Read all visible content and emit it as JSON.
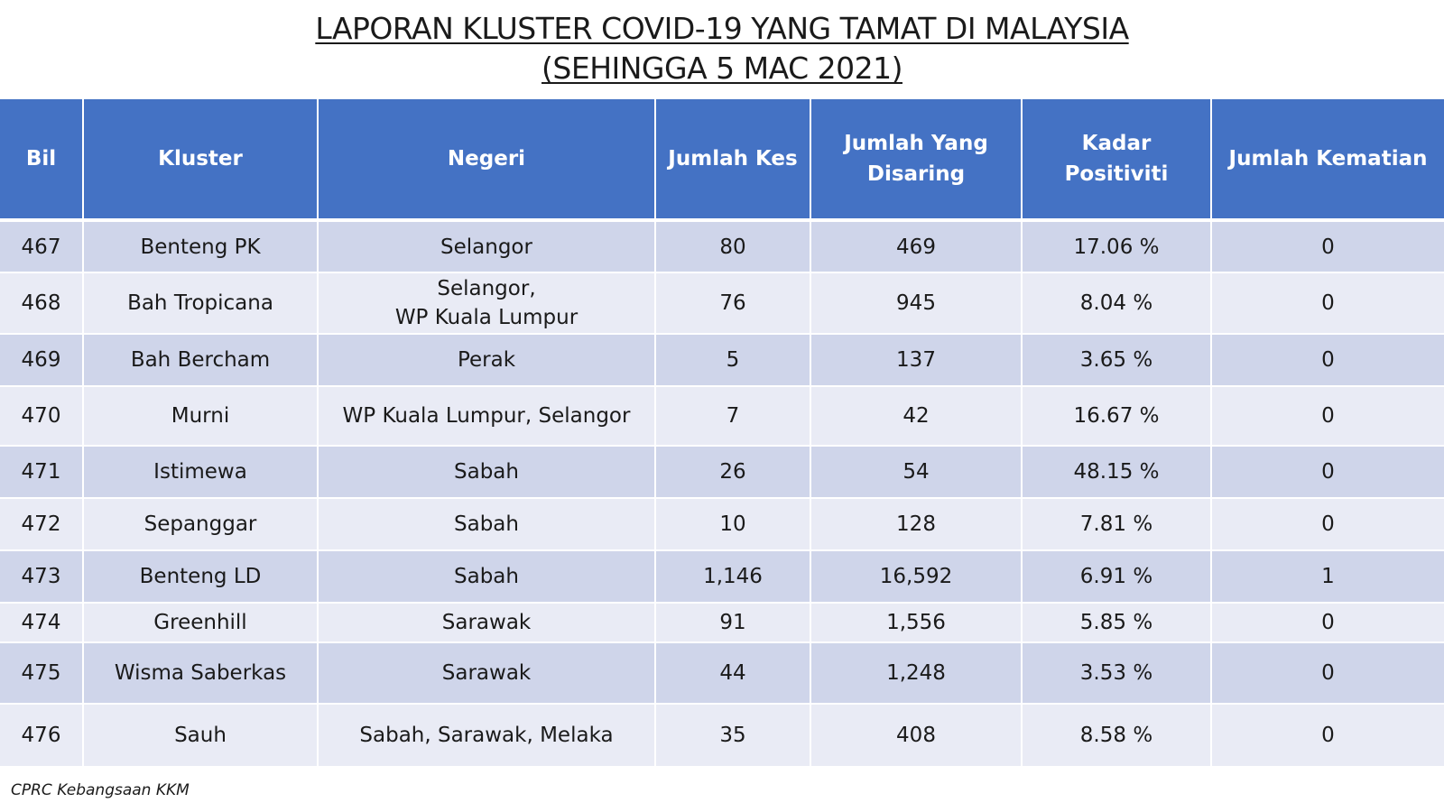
{
  "title": {
    "line1": "LAPORAN KLUSTER COVID-19 YANG TAMAT DI MALAYSIA",
    "line2": "(SEHINGGA 5 MAC 2021)"
  },
  "headers": [
    "Bil",
    "Kluster",
    "Negeri",
    "Jumlah Kes",
    "Jumlah Yang Disaring",
    "Kadar Positiviti",
    "Jumlah Kematian"
  ],
  "rows": [
    [
      "467",
      "Benteng PK",
      "Selangor",
      "80",
      "469",
      "17.06 %",
      "0"
    ],
    [
      "468",
      "Bah Tropicana",
      "Selangor,\nWP Kuala Lumpur",
      "76",
      "945",
      "8.04 %",
      "0"
    ],
    [
      "469",
      "Bah Bercham",
      "Perak",
      "5",
      "137",
      "3.65 %",
      "0"
    ],
    [
      "470",
      "Murni",
      "WP Kuala Lumpur, Selangor",
      "7",
      "42",
      "16.67 %",
      "0"
    ],
    [
      "471",
      "Istimewa",
      "Sabah",
      "26",
      "54",
      "48.15 %",
      "0"
    ],
    [
      "472",
      "Sepanggar",
      "Sabah",
      "10",
      "128",
      "7.81 %",
      "0"
    ],
    [
      "473",
      "Benteng LD",
      "Sabah",
      "1,146",
      "16,592",
      "6.91 %",
      "1"
    ],
    [
      "474",
      "Greenhill",
      "Sarawak",
      "91",
      "1,556",
      "5.85 %",
      "0"
    ],
    [
      "475",
      "Wisma Saberkas",
      "Sarawak",
      "44",
      "1,248",
      "3.53 %",
      "0"
    ],
    [
      "476",
      "Sauh",
      "Sabah, Sarawak, Melaka",
      "35",
      "408",
      "8.58 %",
      "0"
    ]
  ],
  "footer": "CPRC Kebangsaan KKM",
  "colors": {
    "header_bg": "#4472c4",
    "row_odd": "#cfd5ea",
    "row_even": "#e9ebf5"
  }
}
